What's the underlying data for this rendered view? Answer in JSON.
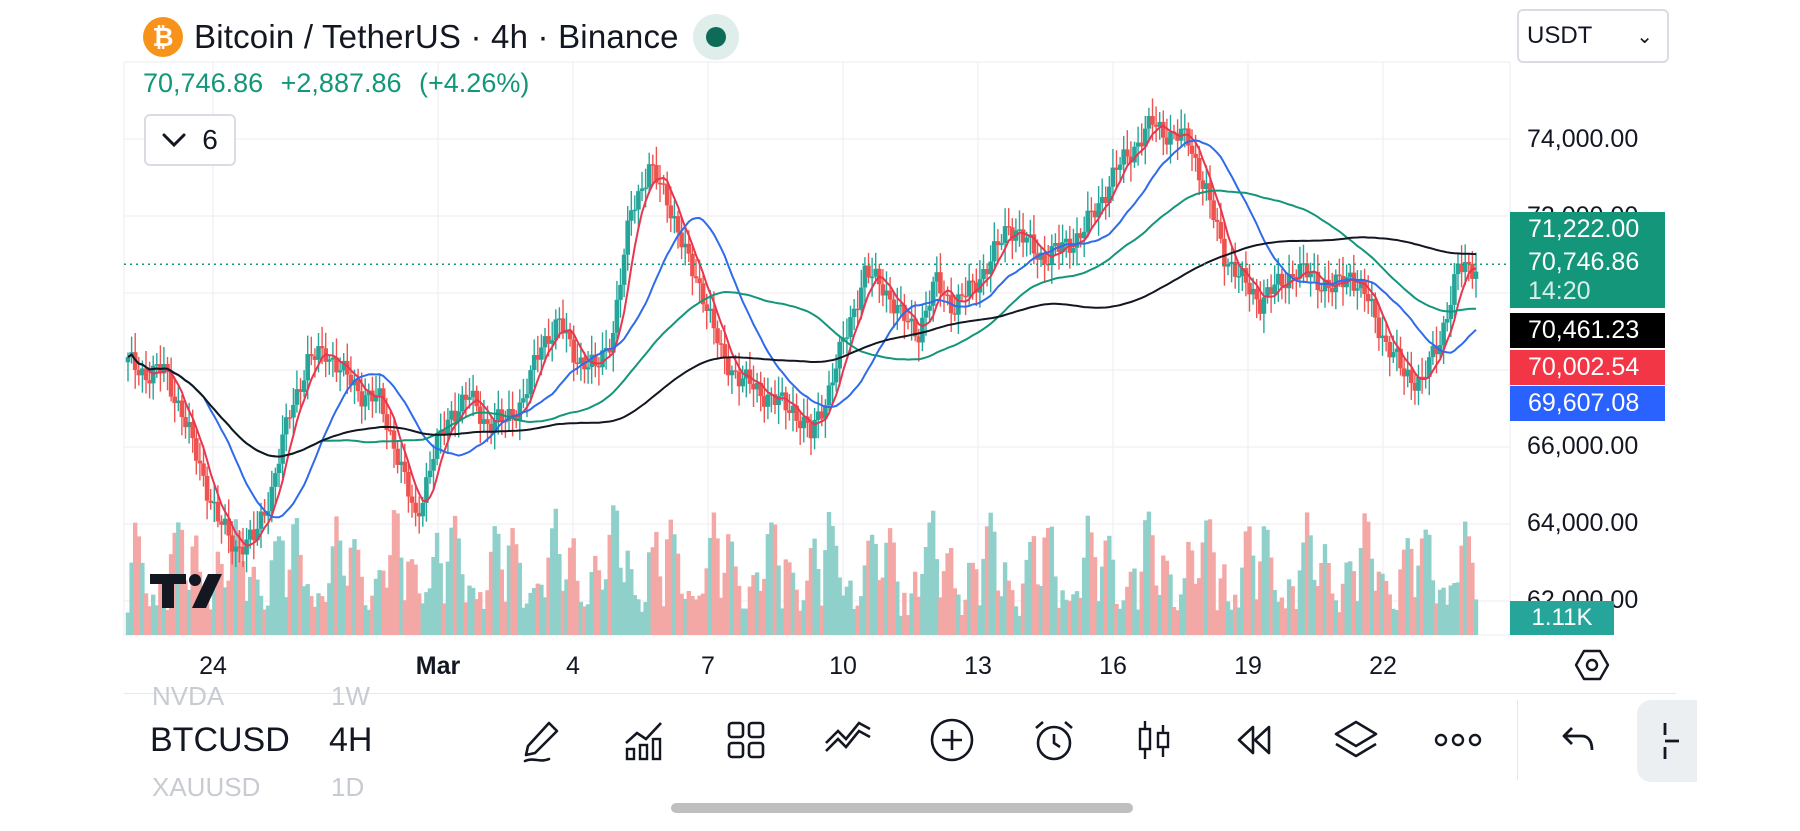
{
  "header": {
    "symbol_title": "Bitcoin / TetherUS · 4h · Binance",
    "logo_glyph": "₿",
    "last_price": "70,746.86",
    "change": "+2,887.86",
    "change_pct": "(+4.26%)",
    "indicator_count": "6",
    "currency_select": "USDT"
  },
  "price_axis": [
    "74,000.00",
    "72,000.00",
    "66,000.00",
    "64,000.00",
    "62,000.00"
  ],
  "price_tags": {
    "ma_green": "71,222.00",
    "last": "70,746.86",
    "countdown": "14:20",
    "ma_black": "70,461.23",
    "ma_red": "70,002.54",
    "ma_blue": "69,607.08",
    "volume": "1.11K"
  },
  "time_axis": [
    "24",
    "Mar",
    "4",
    "7",
    "10",
    "13",
    "16",
    "19",
    "22"
  ],
  "bottom_bar": {
    "ticker": "BTCUSD",
    "interval": "4H",
    "ghost_above_ticker": "NVDA",
    "ghost_above_interval": "1W",
    "ghost_below_ticker": "XAUUSD",
    "ghost_below_interval": "1D",
    "tools": [
      "pen-draw-icon",
      "indicators-icon",
      "layout-grid-icon",
      "compare-icon",
      "add-icon",
      "alarm-icon",
      "candles-icon",
      "replay-icon",
      "layers-icon",
      "more-icon",
      "undo-icon",
      "sidebar-toggle-icon"
    ]
  },
  "colors": {
    "up": "#26a69a",
    "down": "#ef5350",
    "ma_red": "#e8364f",
    "ma_blue": "#2f6bea",
    "ma_green": "#14967a",
    "ma_black": "#131722",
    "accent": "#14967a"
  },
  "chart_data": {
    "type": "candlestick",
    "title": "Bitcoin / TetherUS · 4h · Binance",
    "x_axis_ticks": [
      "24",
      "Mar",
      "4",
      "7",
      "10",
      "13",
      "16",
      "19",
      "22"
    ],
    "y_axis_ticks": [
      74000,
      72000,
      66000,
      64000,
      62000
    ],
    "ylim": [
      61200,
      75200
    ],
    "grid": true,
    "last_price": 70746.86,
    "moving_averages": [
      {
        "color": "#e8364f",
        "last": 70002.54
      },
      {
        "color": "#2f6bea",
        "last": 69607.08
      },
      {
        "color": "#14967a",
        "last": 71222.0
      },
      {
        "color": "#131722",
        "last": 70461.23
      }
    ],
    "price_path": [
      [
        0,
        68200
      ],
      [
        1,
        67900
      ],
      [
        2,
        68000
      ],
      [
        3,
        66900
      ],
      [
        4,
        65500
      ],
      [
        5,
        64100
      ],
      [
        6,
        63400
      ],
      [
        7,
        63600
      ],
      [
        8,
        64900
      ],
      [
        9,
        66900
      ],
      [
        10,
        68200
      ],
      [
        11,
        68500
      ],
      [
        12,
        67900
      ],
      [
        13,
        67400
      ],
      [
        14,
        67200
      ],
      [
        15,
        65800
      ],
      [
        16,
        64100
      ],
      [
        17,
        65800
      ],
      [
        18,
        66900
      ],
      [
        19,
        67300
      ],
      [
        20,
        66600
      ],
      [
        21,
        66700
      ],
      [
        22,
        67200
      ],
      [
        23,
        68700
      ],
      [
        24,
        69200
      ],
      [
        25,
        68300
      ],
      [
        26,
        68000
      ],
      [
        27,
        69000
      ],
      [
        28,
        72200
      ],
      [
        29,
        73200
      ],
      [
        30,
        72500
      ],
      [
        31,
        71000
      ],
      [
        32,
        70000
      ],
      [
        33,
        68400
      ],
      [
        34,
        67800
      ],
      [
        35,
        67500
      ],
      [
        36,
        67200
      ],
      [
        37,
        67000
      ],
      [
        38,
        66300
      ],
      [
        39,
        67500
      ],
      [
        40,
        69000
      ],
      [
        41,
        70500
      ],
      [
        42,
        70200
      ],
      [
        43,
        69400
      ],
      [
        44,
        69000
      ],
      [
        45,
        70300
      ],
      [
        46,
        69600
      ],
      [
        47,
        70200
      ],
      [
        48,
        70800
      ],
      [
        49,
        71800
      ],
      [
        50,
        71300
      ],
      [
        51,
        70900
      ],
      [
        52,
        71200
      ],
      [
        53,
        71500
      ],
      [
        54,
        72300
      ],
      [
        55,
        73200
      ],
      [
        56,
        73800
      ],
      [
        57,
        74400
      ],
      [
        58,
        74100
      ],
      [
        59,
        74000
      ],
      [
        60,
        72600
      ],
      [
        61,
        71000
      ],
      [
        62,
        70300
      ],
      [
        63,
        69800
      ],
      [
        64,
        70200
      ],
      [
        65,
        70600
      ],
      [
        66,
        70400
      ],
      [
        67,
        70100
      ],
      [
        68,
        70500
      ],
      [
        69,
        69800
      ],
      [
        70,
        68700
      ],
      [
        71,
        67900
      ],
      [
        72,
        67700
      ],
      [
        73,
        68800
      ],
      [
        74,
        70600
      ],
      [
        75,
        70700
      ]
    ]
  }
}
